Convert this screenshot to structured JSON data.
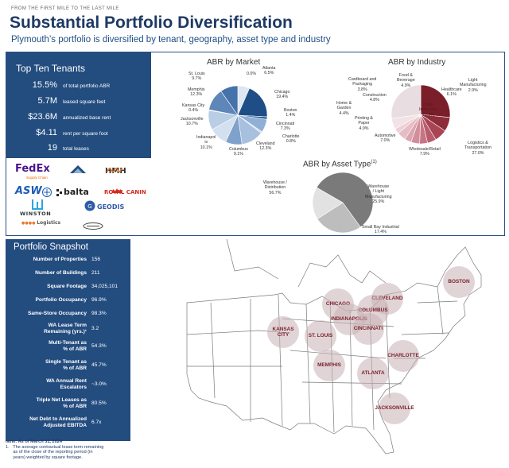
{
  "header": {
    "kicker": "FROM THE FIRST MILE TO THE LAST MILE",
    "title": "Substantial Portfolio Diversification",
    "subtitle": "Plymouth’s portfolio is diversified by tenant, geography, asset type and industry"
  },
  "tenants": {
    "title": "Top Ten Tenants",
    "stats": [
      {
        "value": "15.5%",
        "label": "of total portfolio ABR"
      },
      {
        "value": "5.7M",
        "label": "leased square feet"
      },
      {
        "value": "$23.6M",
        "label": "annualized base rent"
      },
      {
        "value": "$4.11",
        "label": "rent per square foot"
      },
      {
        "value": "19",
        "label": "total leases"
      }
    ],
    "logos": [
      "FedEx",
      "Supply Chain",
      "HMH",
      "ASW",
      "balta",
      "ROYAL CANIN",
      "WINSTON",
      "GEODIS",
      "Logistics"
    ]
  },
  "chart_data": [
    {
      "type": "pie",
      "title": "ABR by Market",
      "categories": [
        "Atlanta",
        "Chicago",
        "Boston",
        "Cincinnati",
        "Charlotte",
        "Cleveland",
        "Columbus",
        "Indianapolis",
        "Jacksonville",
        "Kansas City",
        "Memphis",
        "St. Louis"
      ],
      "values": [
        6.5,
        19.4,
        1.4,
        7.3,
        0.8,
        12.3,
        9.1,
        10.1,
        10.7,
        0.4,
        12.3,
        9.7
      ],
      "labels": [
        "Atlanta\n6.5%",
        "Chicago\n19.4%",
        "Boston\n1.4%",
        "Cincinnati\n7.3%",
        "Charlotte\n0.8%",
        "Cleveland\n12.3%",
        "Columbus\n9.1%",
        "Indianapol\nis\n10.1%",
        "Jacksonville\n10.7%",
        "Kansas City\n0.4%",
        "Memphis\n12.3%",
        "St. Louis\n9.7%"
      ],
      "extra_labels": [
        "0.0%"
      ],
      "colors": [
        "#dde6f1",
        "#1f4e86",
        "#2d5f99",
        "#8fb0d6",
        "#c9d8ea",
        "#a6c0de",
        "#7fa2cc",
        "#d3e0ef",
        "#b9cde5",
        "#e8eff7",
        "#5e86b8",
        "#4672aa"
      ]
    },
    {
      "type": "pie",
      "title": "ABR by Industry",
      "categories": [
        "Logistics & Transportation",
        "Wholesale/Retail",
        "Automotive",
        "Printing & Paper",
        "Home & Garden",
        "Construction",
        "Cardboard and Packaging",
        "Food & Beverage",
        "Light Manufacturing",
        "Healthcare",
        "Other Industries"
      ],
      "values": [
        27.0,
        7.9,
        7.0,
        4.9,
        4.4,
        4.8,
        3.8,
        4.9,
        2.9,
        6.1,
        27.5
      ],
      "labels": [
        "Logistics &\nTransportation\n27.0%",
        "Wholesale/Retail\n7.9%",
        "Automotive\n7.0%",
        "Printing &\nPaper\n4.9%",
        "Home &\nGarden\n4.4%",
        "Construction\n4.8%",
        "Cardboard and\nPackaging\n3.8%",
        "Food &\nBeverage\n4.9%",
        "Light\nManufacturing\n2.9%",
        "Healthcare\n6.1%",
        "Other\nIndustries\n27.5%"
      ],
      "colors": [
        "#7a1e2a",
        "#8e2c39",
        "#a94455",
        "#b85c6b",
        "#c67584",
        "#d28e9b",
        "#dca6b0",
        "#e6bdc5",
        "#ecd0d5",
        "#f3e2e5",
        "#e8dde0"
      ]
    },
    {
      "type": "pie",
      "title": "ABR by Asset Type",
      "title_sup": "(1)",
      "categories": [
        "Warehouse / Distribution",
        "Warehouse / Light Manufacturing",
        "Small Bay Industrial"
      ],
      "values": [
        56.7,
        25.9,
        17.4
      ],
      "labels": [
        "Warehouse /\nDistribution\n56.7%",
        "Warehouse\n/ Light\nManufacturing\n25.9%",
        "Small Bay Industrial\n17.4%"
      ],
      "colors": [
        "#7a7a7a",
        "#bdbdbd",
        "#e2e2e2"
      ]
    }
  ],
  "snapshot": {
    "title": "Portfolio Snapshot",
    "rows": [
      {
        "label": "Number of Properties",
        "value": "156"
      },
      {
        "label": "Number of Buildings",
        "value": "211"
      },
      {
        "label": "Square Footage",
        "value": "34,025,101"
      },
      {
        "label": "Portfolio Occupancy",
        "value": "96.9%"
      },
      {
        "label": "Same-Store Occupancy",
        "value": "98.3%"
      },
      {
        "label": "WA Lease Term\nRemaining (yrs.)¹",
        "value": "3.2"
      },
      {
        "label": "Multi-Tenant as\n% of ABR",
        "value": "54.3%"
      },
      {
        "label": "Single Tenant as\n% of ABR",
        "value": "45.7%"
      },
      {
        "label": "WA Annual Rent\nEscalators",
        "value": "~3.0%"
      },
      {
        "label": "Triple Net Leases as\n% of ABR",
        "value": "80.5%"
      },
      {
        "label": "Net Debt to Annualized\nAdjusted EBITDA",
        "value": "6.7x"
      }
    ],
    "note_as_of": "Note: As of March 31, 2024",
    "footnote": "1.   The average contractual lease term remaining\n      as of the close of the reporting period (in\n      years) weighted by square footage."
  },
  "map": {
    "cities": [
      "BOSTON",
      "CHICAGO",
      "CLEVELAND",
      "COLUMBUS",
      "INDIANAPOLIS",
      "CINCINNATI",
      "KANSAS\nCITY",
      "ST. LOUIS",
      "CHARLOTTE",
      "MEMPHIS",
      "ATLANTA",
      "JACKSONVILLE"
    ]
  }
}
